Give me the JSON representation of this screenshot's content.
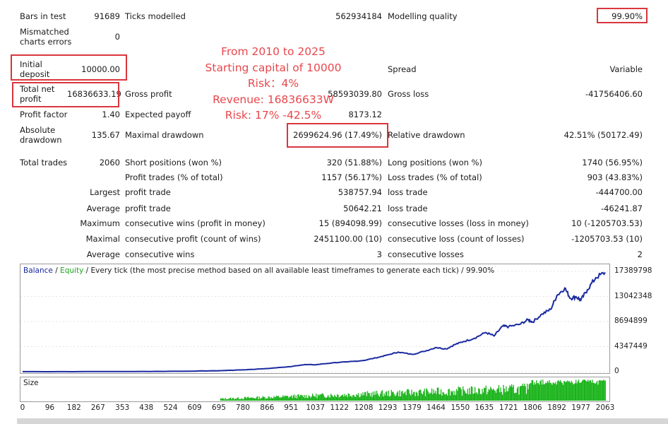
{
  "colors": {
    "accent_red": "#d9363e",
    "overlay_red": "#e8474c",
    "balance": "#1a2aa0",
    "equity": "#1fa61f",
    "size_bars": "#19b319"
  },
  "stats": {
    "bars_in_test_label": "Bars in test",
    "bars_in_test_value": "91689",
    "ticks_modelled_label": "Ticks modelled",
    "ticks_modelled_value": "562934184",
    "modelling_quality_label": "Modelling quality",
    "modelling_quality_value": "99.90%",
    "mismatched_label": "Mismatched charts errors",
    "mismatched_value": "0",
    "initial_deposit_label": "Initial deposit",
    "initial_deposit_value": "10000.00",
    "spread_label": "Spread",
    "spread_value": "Variable",
    "total_net_profit_label": "Total net profit",
    "total_net_profit_value": "16836633.19",
    "gross_profit_label": "Gross profit",
    "gross_profit_value": "58593039.80",
    "gross_loss_label": "Gross loss",
    "gross_loss_value": "-41756406.60",
    "profit_factor_label": "Profit factor",
    "profit_factor_value": "1.40",
    "expected_payoff_label": "Expected payoff",
    "expected_payoff_value": "8173.12",
    "absolute_drawdown_label": "Absolute drawdown",
    "absolute_drawdown_value": "135.67",
    "maximal_drawdown_label": "Maximal drawdown",
    "maximal_drawdown_value": "2699624.96 (17.49%)",
    "relative_drawdown_label": "Relative drawdown",
    "relative_drawdown_value": "42.51% (50172.49)",
    "total_trades_label": "Total trades",
    "total_trades_value": "2060",
    "short_positions_label": "Short positions (won %)",
    "short_positions_value": "320 (51.88%)",
    "long_positions_label": "Long positions (won %)",
    "long_positions_value": "1740 (56.95%)",
    "profit_trades_label": "Profit trades (% of total)",
    "profit_trades_value": "1157 (56.17%)",
    "loss_trades_label": "Loss trades (% of total)",
    "loss_trades_value": "903 (43.83%)",
    "largest_label": "Largest",
    "largest_profit_label": "profit trade",
    "largest_profit_value": "538757.94",
    "largest_loss_label": "loss trade",
    "largest_loss_value": "-444700.00",
    "average_label": "Average",
    "average_profit_label": "profit trade",
    "average_profit_value": "50642.21",
    "average_loss_label": "loss trade",
    "average_loss_value": "-46241.87",
    "maximum_label": "Maximum",
    "max_cons_wins_label": "consecutive wins (profit in money)",
    "max_cons_wins_value": "15 (894098.99)",
    "max_cons_losses_label": "consecutive losses (loss in money)",
    "max_cons_losses_value": "10 (-1205703.53)",
    "maximal_label": "Maximal",
    "maximal_cons_profit_label": "consecutive profit (count of wins)",
    "maximal_cons_profit_value": "2451100.00 (10)",
    "maximal_cons_loss_label": "consecutive loss (count of losses)",
    "maximal_cons_loss_value": "-1205703.53 (10)",
    "average2_label": "Average",
    "avg_cons_wins_label": "consecutive wins",
    "avg_cons_wins_value": "3",
    "avg_cons_losses_label": "consecutive losses",
    "avg_cons_losses_value": "2"
  },
  "overlay": {
    "line1": "From 2010 to 2025",
    "line2": "Starting capital of 10000",
    "line3": "Risk：4%",
    "line4": "Revenue: 16836633W",
    "line5": "Risk: 17% -42.5%"
  },
  "chart_legend": {
    "balance": "Balance",
    "sep1": " / ",
    "equity": "Equity",
    "rest": " / Every tick (the most precise method based on all available least timeframes to generate each tick) / 99.90%"
  },
  "size_label": "Size",
  "chart_data": {
    "type": "line",
    "y_ticks": [
      "17389798",
      "13042348",
      "8694899",
      "4347449",
      "0"
    ],
    "x_ticks": [
      "0",
      "96",
      "182",
      "267",
      "353",
      "438",
      "524",
      "609",
      "695",
      "780",
      "866",
      "951",
      "1037",
      "1122",
      "1208",
      "1293",
      "1379",
      "1464",
      "1550",
      "1635",
      "1721",
      "1806",
      "1892",
      "1977",
      "2063"
    ],
    "ylim": [
      0,
      17389798
    ],
    "xlim": [
      0,
      2063
    ],
    "series": [
      {
        "name": "Balance",
        "points": [
          [
            0,
            10000
          ],
          [
            200,
            15000
          ],
          [
            400,
            40000
          ],
          [
            600,
            90000
          ],
          [
            700,
            180000
          ],
          [
            780,
            320000
          ],
          [
            866,
            550000
          ],
          [
            951,
            900000
          ],
          [
            1000,
            1250000
          ],
          [
            1037,
            1200000
          ],
          [
            1100,
            1550000
          ],
          [
            1150,
            1700000
          ],
          [
            1208,
            1950000
          ],
          [
            1260,
            2500000
          ],
          [
            1293,
            2900000
          ],
          [
            1330,
            3400000
          ],
          [
            1379,
            3000000
          ],
          [
            1420,
            3500000
          ],
          [
            1464,
            4200000
          ],
          [
            1500,
            3950000
          ],
          [
            1530,
            4700000
          ],
          [
            1560,
            5200000
          ],
          [
            1600,
            5800000
          ],
          [
            1640,
            6800000
          ],
          [
            1670,
            6200000
          ],
          [
            1700,
            7900000
          ],
          [
            1721,
            7800000
          ],
          [
            1760,
            8200000
          ],
          [
            1790,
            9000000
          ],
          [
            1806,
            8600000
          ],
          [
            1840,
            10000000
          ],
          [
            1870,
            10800000
          ],
          [
            1892,
            13200000
          ],
          [
            1920,
            14500000
          ],
          [
            1940,
            12700000
          ],
          [
            1960,
            13000000
          ],
          [
            1977,
            12400000
          ],
          [
            2000,
            14200000
          ],
          [
            2030,
            16300000
          ],
          [
            2063,
            17200000
          ]
        ]
      }
    ]
  }
}
